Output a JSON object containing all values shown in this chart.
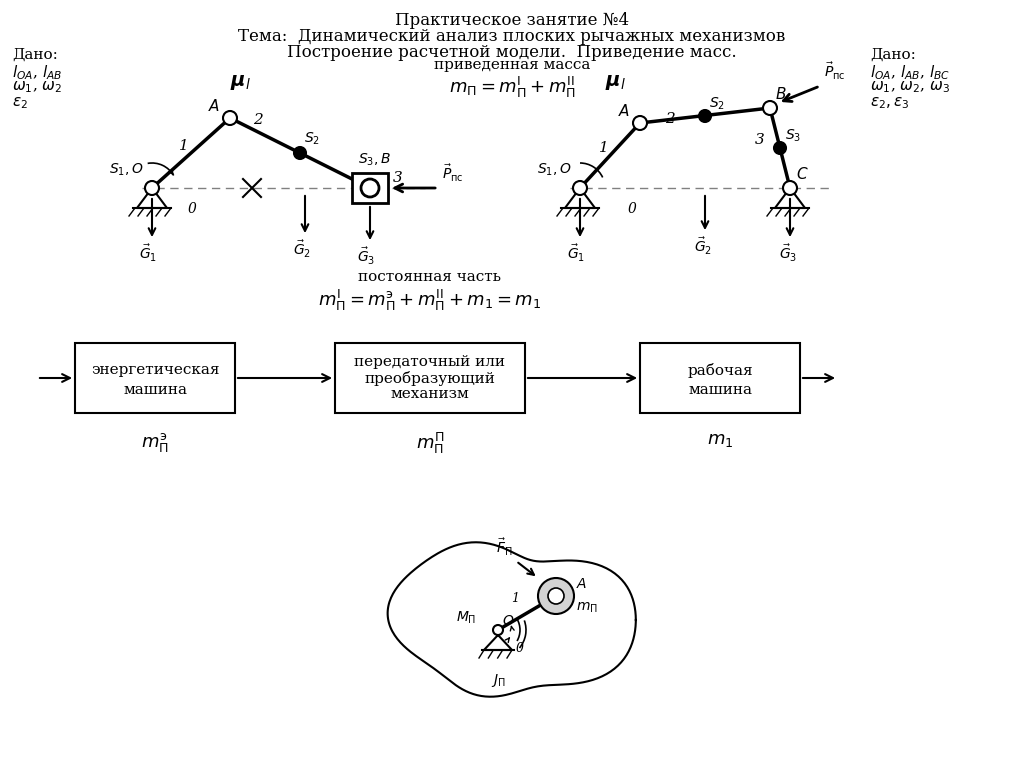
{
  "title_line1": "Практическое занятие №4",
  "title_line2": "Тема:  Динамический анализ плоских рычажных механизмов",
  "title_line3": "Построение расчетной модели.  Приведение масс.",
  "bg_color": "#ffffff"
}
